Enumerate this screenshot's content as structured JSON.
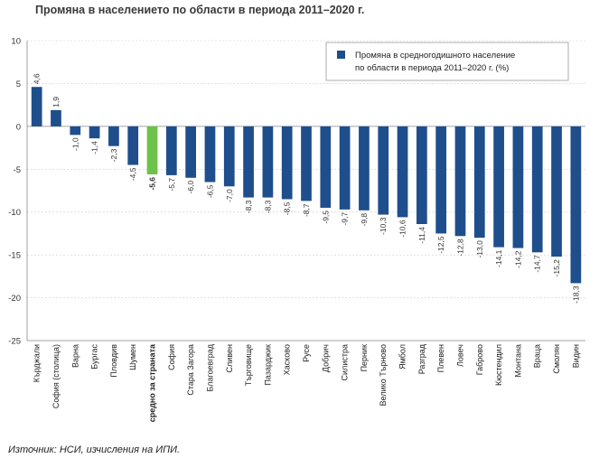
{
  "title": "Промяна в населението по области в периода 2011–2020 г.",
  "source": "Източник: НСИ, изчисления на ИПИ.",
  "colors": {
    "bar": "#1f4e8c",
    "highlight_bar": "#6cc24a",
    "highlight_label": "#d6243a",
    "grid": "#cfcfcf"
  },
  "chart_data": {
    "type": "bar",
    "legend": {
      "position": "top-right",
      "lines": [
        "Промяна в средногодишното население",
        "по области в периода 2011–2020 г. (%)"
      ]
    },
    "ylim": [
      -25,
      10
    ],
    "yticks": [
      "10",
      "5",
      "0",
      "-5",
      "-10",
      "-15",
      "-20",
      "-25"
    ],
    "grid": true,
    "highlight_index": 6,
    "categories": [
      "Кърджали",
      "София (столица)",
      "Варна",
      "Бургас",
      "Пловдив",
      "Шумен",
      "средно за страната",
      "София",
      "Стара Загора",
      "Благоевград",
      "Сливен",
      "Търговище",
      "Пазарджик",
      "Хасково",
      "Русе",
      "Добрич",
      "Силистра",
      "Перник",
      "Велико Търново",
      "Ямбол",
      "Разград",
      "Плевен",
      "Ловеч",
      "Габрово",
      "Кюстендил",
      "Монтана",
      "Враца",
      "Смолян",
      "Видин"
    ],
    "values": [
      4.6,
      1.9,
      -1.0,
      -1.4,
      -2.3,
      -4.5,
      -5.6,
      -5.7,
      -6.0,
      -6.5,
      -7.0,
      -8.3,
      -8.3,
      -8.5,
      -8.7,
      -9.5,
      -9.7,
      -9.8,
      -10.3,
      -10.6,
      -11.4,
      -12.5,
      -12.8,
      -13.0,
      -14.1,
      -14.2,
      -14.7,
      -15.2,
      -18.3
    ],
    "value_labels": [
      "4,6",
      "1,9",
      "-1,0",
      "-1,4",
      "-2,3",
      "-4,5",
      "-5,6",
      "-5,7",
      "-6,0",
      "-6,5",
      "-7,0",
      "-8,3",
      "-8,3",
      "-8,5",
      "-8,7",
      "-9,5",
      "-9,7",
      "-9,8",
      "-10,3",
      "-10,6",
      "-11,4",
      "-12,5",
      "-12,8",
      "-13,0",
      "-14,1",
      "-14,2",
      "-14,7",
      "-15,2",
      "-18,3"
    ]
  }
}
